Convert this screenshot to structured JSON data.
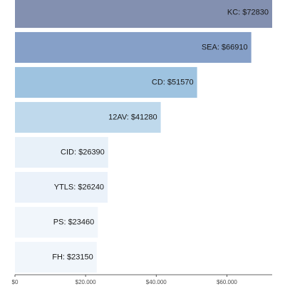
{
  "chart_data": {
    "type": "bar",
    "orientation": "horizontal",
    "categories": [
      "KC",
      "SEA",
      "CD",
      "12AV",
      "CID",
      "YTLS",
      "PS",
      "FH"
    ],
    "values": [
      72830,
      66910,
      51570,
      41280,
      26390,
      26240,
      23460,
      23150
    ],
    "labels": [
      "KC: $72830",
      "SEA: $66910",
      "CD: $51570",
      "12AV: $41280",
      "CID: $26390",
      "YTLS: $26240",
      "PS: $23460",
      "FH: $23150"
    ],
    "colors": [
      "#8390b0",
      "#86a0c8",
      "#9ec3e0",
      "#bfd9ec",
      "#e8f1f9",
      "#ebf2fa",
      "#f1f6fb",
      "#f1f6fb"
    ],
    "xlim": [
      0,
      72830
    ],
    "xticks": [
      0,
      20000,
      40000,
      60000
    ],
    "xtick_labels": [
      "$0",
      "$20.000",
      "$40.000",
      "$60.000"
    ],
    "title": "",
    "xlabel": "",
    "ylabel": "",
    "grid": false,
    "legend": "none"
  }
}
